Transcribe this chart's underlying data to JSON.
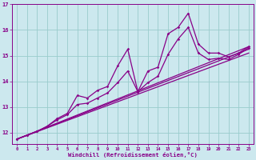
{
  "xlabel": "Windchill (Refroidissement éolien,°C)",
  "bg_color": "#cce8ee",
  "line_color": "#880088",
  "grid_color": "#99cccc",
  "xlim": [
    -0.5,
    23.5
  ],
  "ylim": [
    11.55,
    17.0
  ],
  "yticks": [
    12,
    13,
    14,
    15,
    16,
    17
  ],
  "xticks": [
    0,
    1,
    2,
    3,
    4,
    5,
    6,
    7,
    8,
    9,
    10,
    11,
    12,
    13,
    14,
    15,
    16,
    17,
    18,
    19,
    20,
    21,
    22,
    23
  ],
  "line1_x": [
    0,
    1,
    2,
    3,
    4,
    5,
    6,
    7,
    8,
    9,
    10,
    11,
    12,
    13,
    14,
    15,
    16,
    17,
    18,
    19,
    20,
    21,
    22,
    23
  ],
  "line1_y": [
    11.75,
    11.9,
    12.05,
    12.25,
    12.55,
    12.75,
    13.45,
    13.35,
    13.65,
    13.8,
    14.6,
    15.25,
    13.6,
    14.4,
    14.55,
    15.85,
    16.1,
    16.65,
    15.45,
    15.1,
    15.1,
    14.95,
    15.1,
    15.35
  ],
  "line2_x": [
    0,
    1,
    2,
    3,
    4,
    5,
    6,
    7,
    8,
    9,
    10,
    11,
    12,
    13,
    14,
    15,
    16,
    17,
    18,
    19,
    20,
    21,
    22,
    23
  ],
  "line2_y": [
    11.75,
    11.9,
    12.05,
    12.25,
    12.5,
    12.7,
    13.1,
    13.15,
    13.35,
    13.55,
    13.95,
    14.4,
    13.6,
    13.95,
    14.2,
    15.05,
    15.65,
    16.1,
    15.1,
    14.85,
    14.9,
    14.85,
    15.05,
    15.3
  ],
  "line3_x": [
    0,
    23
  ],
  "line3_y": [
    11.75,
    15.35
  ],
  "line4_x": [
    0,
    23
  ],
  "line4_y": [
    11.75,
    15.1
  ],
  "line5_x": [
    0,
    23
  ],
  "line5_y": [
    11.75,
    15.25
  ]
}
